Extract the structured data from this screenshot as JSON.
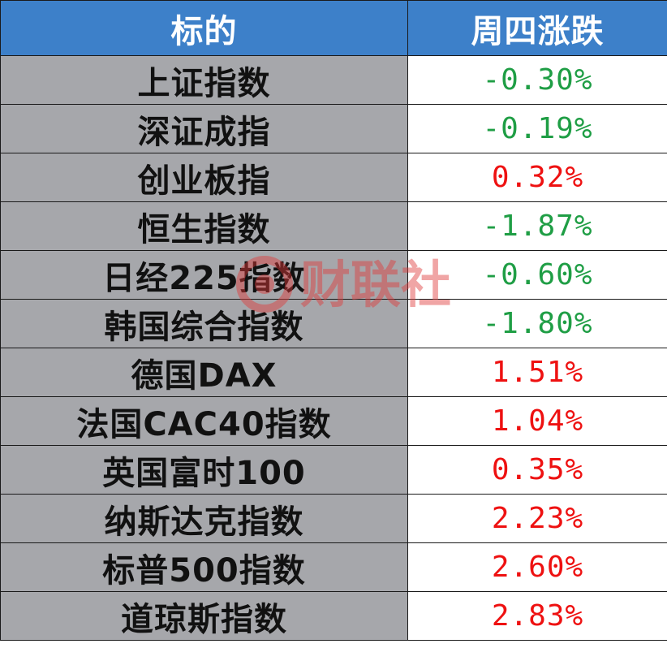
{
  "table": {
    "headers": {
      "name": "标的",
      "change": "周四涨跌"
    },
    "rows": [
      {
        "name": "上证指数",
        "change": "-0.30%",
        "direction": "down"
      },
      {
        "name": "深证成指",
        "change": "-0.19%",
        "direction": "down"
      },
      {
        "name": "创业板指",
        "change": "0.32%",
        "direction": "up"
      },
      {
        "name": "恒生指数",
        "change": "-1.87%",
        "direction": "down"
      },
      {
        "name": "日经225指数",
        "change": "-0.60%",
        "direction": "down"
      },
      {
        "name": "韩国综合指数",
        "change": "-1.80%",
        "direction": "down"
      },
      {
        "name": "德国DAX",
        "change": "1.51%",
        "direction": "up"
      },
      {
        "name": "法国CAC40指数",
        "change": "1.04%",
        "direction": "up"
      },
      {
        "name": "英国富时100",
        "change": "0.35%",
        "direction": "up"
      },
      {
        "name": "纳斯达克指数",
        "change": "2.23%",
        "direction": "up"
      },
      {
        "name": "标普500指数",
        "change": "2.60%",
        "direction": "up"
      },
      {
        "name": "道琼斯指数",
        "change": "2.83%",
        "direction": "up"
      }
    ]
  },
  "watermark": {
    "text": "财联社"
  },
  "colors": {
    "header_bg": "#3d80c9",
    "name_cell_bg": "#a6a7ab",
    "down": "#1f9e45",
    "up": "#ee1111",
    "watermark_red": "#e03a3a"
  }
}
